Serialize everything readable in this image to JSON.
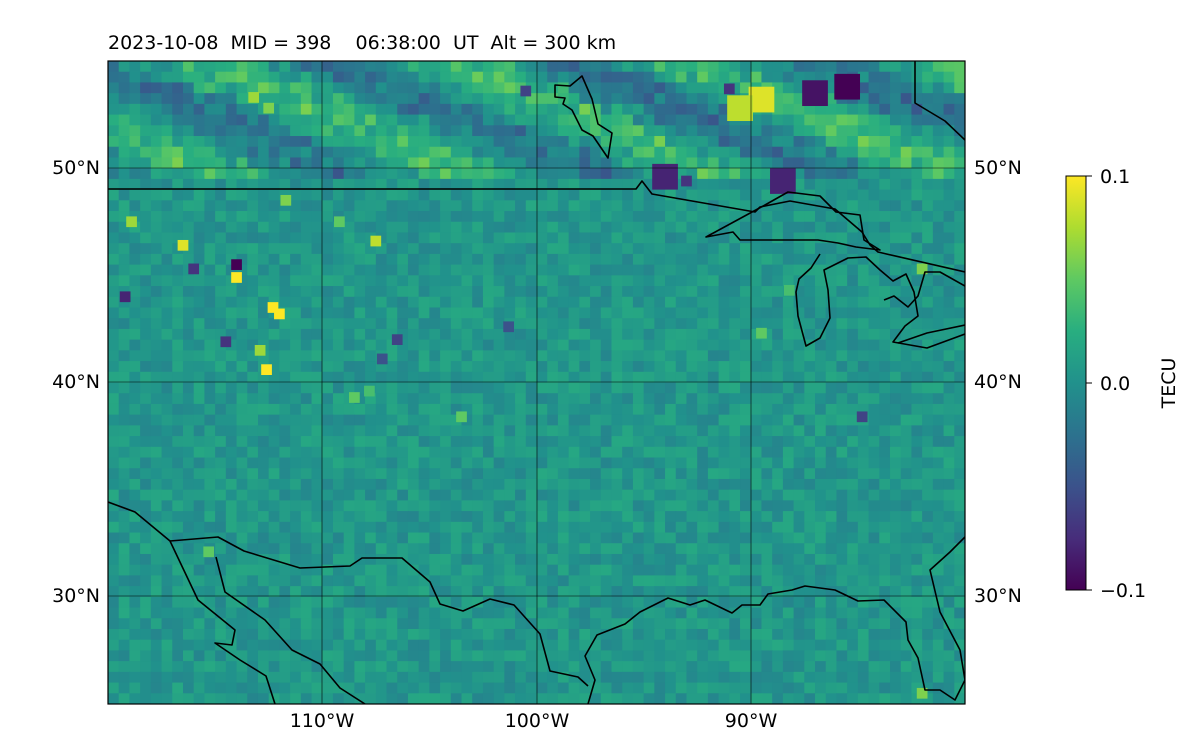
{
  "chart_data": {
    "type": "heatmap",
    "title": "2023-10-08  MID = 398    06:38:00  UT  Alt = 300 km",
    "xlabel": "",
    "ylabel": "",
    "projection": "PlateCarree",
    "xlim": [
      -120,
      -80
    ],
    "ylim": [
      25,
      55
    ],
    "x_ticks": [
      -110,
      -100,
      -90
    ],
    "x_tick_labels": [
      "110°W",
      "100°W",
      "90°W"
    ],
    "y_ticks": [
      30,
      40,
      50
    ],
    "y_tick_labels": [
      "30°N",
      "40°N",
      "50°N"
    ],
    "grid": true,
    "colormap": "viridis",
    "colorbar": {
      "label": "TECU",
      "range": [
        -0.1,
        0.1
      ],
      "ticks": [
        0.1,
        0.0,
        -0.1
      ],
      "tick_labels": [
        "0.1",
        "0.0",
        "−0.1"
      ],
      "placement": "right"
    },
    "anomalies": [
      {
        "lon": -85.5,
        "lat": 53.8,
        "value": -0.1
      },
      {
        "lon": -87.0,
        "lat": 53.5,
        "value": -0.09
      },
      {
        "lon": -91.0,
        "lat": 53.7,
        "value": -0.07
      },
      {
        "lon": -100.5,
        "lat": 53.6,
        "value": -0.06
      },
      {
        "lon": -94.0,
        "lat": 49.6,
        "value": -0.08
      },
      {
        "lon": -93.0,
        "lat": 49.4,
        "value": -0.07
      },
      {
        "lon": -88.5,
        "lat": 49.4,
        "value": -0.08
      },
      {
        "lon": -89.5,
        "lat": 53.2,
        "value": 0.09
      },
      {
        "lon": -90.5,
        "lat": 52.8,
        "value": 0.08
      },
      {
        "lon": -113.2,
        "lat": 53.3,
        "value": 0.07
      },
      {
        "lon": -112.5,
        "lat": 52.8,
        "value": 0.06
      },
      {
        "lon": -114.0,
        "lat": 45.5,
        "value": -0.1
      },
      {
        "lon": -116.0,
        "lat": 45.3,
        "value": -0.07
      },
      {
        "lon": -119.2,
        "lat": 44.0,
        "value": -0.08
      },
      {
        "lon": -114.0,
        "lat": 44.9,
        "value": 0.1
      },
      {
        "lon": -116.5,
        "lat": 46.4,
        "value": 0.09
      },
      {
        "lon": -112.3,
        "lat": 43.5,
        "value": 0.1
      },
      {
        "lon": -112.0,
        "lat": 43.2,
        "value": 0.1
      },
      {
        "lon": -112.6,
        "lat": 40.6,
        "value": 0.1
      },
      {
        "lon": -112.9,
        "lat": 41.5,
        "value": 0.07
      },
      {
        "lon": -118.9,
        "lat": 47.5,
        "value": 0.07
      },
      {
        "lon": -111.7,
        "lat": 48.5,
        "value": 0.06
      },
      {
        "lon": -109.2,
        "lat": 47.5,
        "value": 0.05
      },
      {
        "lon": -107.5,
        "lat": 46.6,
        "value": 0.08
      },
      {
        "lon": -114.5,
        "lat": 41.9,
        "value": -0.07
      },
      {
        "lon": -101.3,
        "lat": 42.6,
        "value": -0.05
      },
      {
        "lon": -103.5,
        "lat": 38.4,
        "value": 0.05
      },
      {
        "lon": -108.5,
        "lat": 39.3,
        "value": 0.05
      },
      {
        "lon": -107.8,
        "lat": 39.6,
        "value": 0.04
      },
      {
        "lon": -88.2,
        "lat": 44.3,
        "value": 0.04
      },
      {
        "lon": -89.5,
        "lat": 42.3,
        "value": 0.05
      },
      {
        "lon": -106.5,
        "lat": 42.0,
        "value": -0.06
      },
      {
        "lon": -107.2,
        "lat": 41.1,
        "value": -0.05
      },
      {
        "lon": -84.8,
        "lat": 38.4,
        "value": -0.06
      },
      {
        "lon": -82.0,
        "lat": 45.3,
        "value": 0.06
      },
      {
        "lon": -115.3,
        "lat": 32.1,
        "value": 0.05
      },
      {
        "lon": -82.0,
        "lat": 25.5,
        "value": 0.06
      }
    ]
  }
}
